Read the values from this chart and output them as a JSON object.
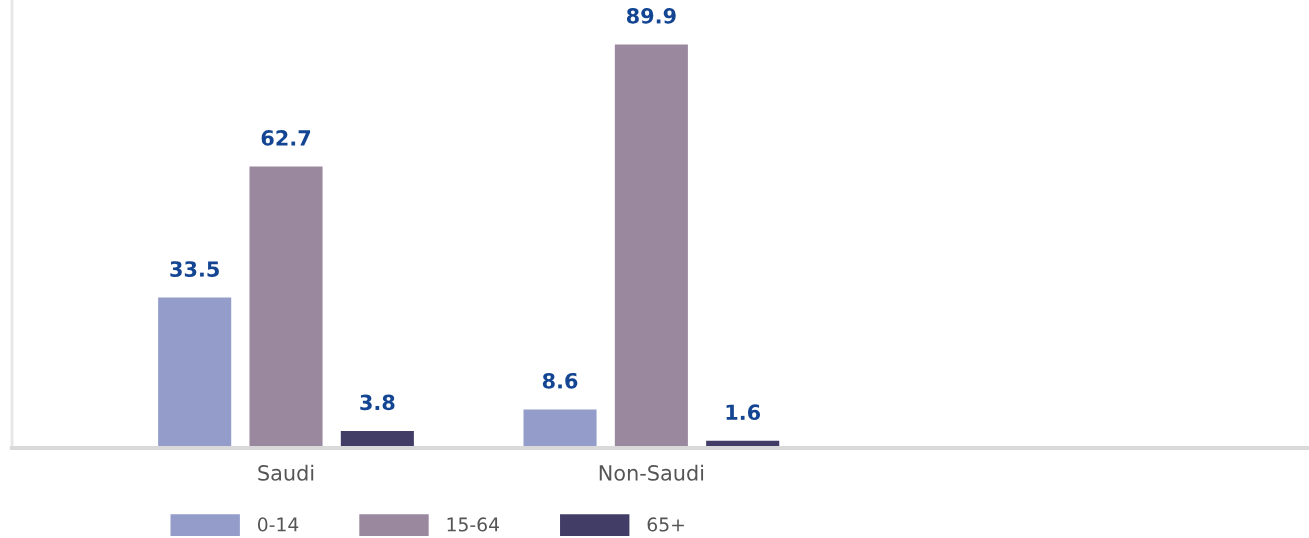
{
  "chart_data": {
    "type": "bar",
    "categories": [
      "Saudi",
      "Non-Saudi"
    ],
    "series": [
      {
        "name": "0-14",
        "color": "#949dca",
        "values": [
          33.5,
          8.6
        ]
      },
      {
        "name": "15-64",
        "color": "#9a889f",
        "values": [
          62.7,
          89.9
        ]
      },
      {
        "name": "65+",
        "color": "#423d66",
        "values": [
          3.8,
          1.6
        ]
      }
    ],
    "data_labels": true,
    "tick_labels": "x",
    "grid": false,
    "legend": "bottom"
  }
}
